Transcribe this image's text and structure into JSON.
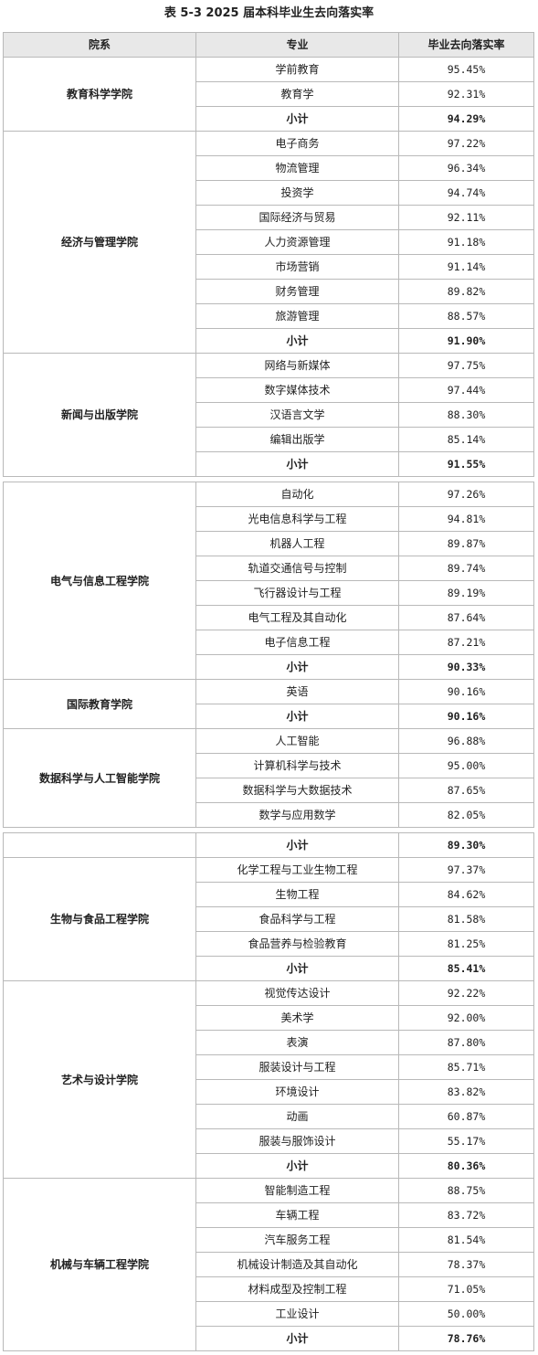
{
  "title": "表 5-3 2025 届本科毕业生去向落实率",
  "headers": [
    "院系",
    "专业",
    "毕业去向落实率"
  ],
  "subtotal_label": "小计",
  "colleges": [
    {
      "name": "教育科学学院",
      "majors": [
        {
          "name": "学前教育",
          "rate": "95.45%"
        },
        {
          "name": "教育学",
          "rate": "92.31%"
        }
      ],
      "subtotal": "94.29%"
    },
    {
      "name": "经济与管理学院",
      "majors": [
        {
          "name": "电子商务",
          "rate": "97.22%"
        },
        {
          "name": "物流管理",
          "rate": "96.34%"
        },
        {
          "name": "投资学",
          "rate": "94.74%"
        },
        {
          "name": "国际经济与贸易",
          "rate": "92.11%"
        },
        {
          "name": "人力资源管理",
          "rate": "91.18%"
        },
        {
          "name": "市场营销",
          "rate": "91.14%"
        },
        {
          "name": "财务管理",
          "rate": "89.82%"
        },
        {
          "name": "旅游管理",
          "rate": "88.57%"
        }
      ],
      "subtotal": "91.90%"
    },
    {
      "name": "新闻与出版学院",
      "majors": [
        {
          "name": "网络与新媒体",
          "rate": "97.75%"
        },
        {
          "name": "数字媒体技术",
          "rate": "97.44%"
        },
        {
          "name": "汉语言文学",
          "rate": "88.30%"
        },
        {
          "name": "编辑出版学",
          "rate": "85.14%"
        }
      ],
      "subtotal": "91.55%",
      "separator_after": true
    },
    {
      "name": "电气与信息工程学院",
      "majors": [
        {
          "name": "自动化",
          "rate": "97.26%"
        },
        {
          "name": "光电信息科学与工程",
          "rate": "94.81%"
        },
        {
          "name": "机器人工程",
          "rate": "89.87%"
        },
        {
          "name": "轨道交通信号与控制",
          "rate": "89.74%"
        },
        {
          "name": "飞行器设计与工程",
          "rate": "89.19%"
        },
        {
          "name": "电气工程及其自动化",
          "rate": "87.64%"
        },
        {
          "name": "电子信息工程",
          "rate": "87.21%"
        }
      ],
      "subtotal": "90.33%"
    },
    {
      "name": "国际教育学院",
      "majors": [
        {
          "name": "英语",
          "rate": "90.16%"
        }
      ],
      "subtotal": "90.16%"
    },
    {
      "name": "数据科学与人工智能学院",
      "majors": [
        {
          "name": "人工智能",
          "rate": "96.88%"
        },
        {
          "name": "计算机科学与技术",
          "rate": "95.00%"
        },
        {
          "name": "数据科学与大数据技术",
          "rate": "87.65%"
        },
        {
          "name": "数学与应用数学",
          "rate": "82.05%"
        }
      ],
      "subtotal": "89.30%",
      "split_subtotal": true
    },
    {
      "name": "生物与食品工程学院",
      "majors": [
        {
          "name": "化学工程与工业生物工程",
          "rate": "97.37%"
        },
        {
          "name": "生物工程",
          "rate": "84.62%"
        },
        {
          "name": "食品科学与工程",
          "rate": "81.58%"
        },
        {
          "name": "食品营养与检验教育",
          "rate": "81.25%"
        }
      ],
      "subtotal": "85.41%"
    },
    {
      "name": "艺术与设计学院",
      "majors": [
        {
          "name": "视觉传达设计",
          "rate": "92.22%"
        },
        {
          "name": "美术学",
          "rate": "92.00%"
        },
        {
          "name": "表演",
          "rate": "87.80%"
        },
        {
          "name": "服装设计与工程",
          "rate": "85.71%"
        },
        {
          "name": "环境设计",
          "rate": "83.82%"
        },
        {
          "name": "动画",
          "rate": "60.87%"
        },
        {
          "name": "服装与服饰设计",
          "rate": "55.17%"
        }
      ],
      "subtotal": "80.36%"
    },
    {
      "name": "机械与车辆工程学院",
      "majors": [
        {
          "name": "智能制造工程",
          "rate": "88.75%"
        },
        {
          "name": "车辆工程",
          "rate": "83.72%"
        },
        {
          "name": "汽车服务工程",
          "rate": "81.54%"
        },
        {
          "name": "机械设计制造及其自动化",
          "rate": "78.37%"
        },
        {
          "name": "材料成型及控制工程",
          "rate": "71.05%"
        },
        {
          "name": "工业设计",
          "rate": "50.00%"
        }
      ],
      "subtotal": "78.76%"
    }
  ]
}
